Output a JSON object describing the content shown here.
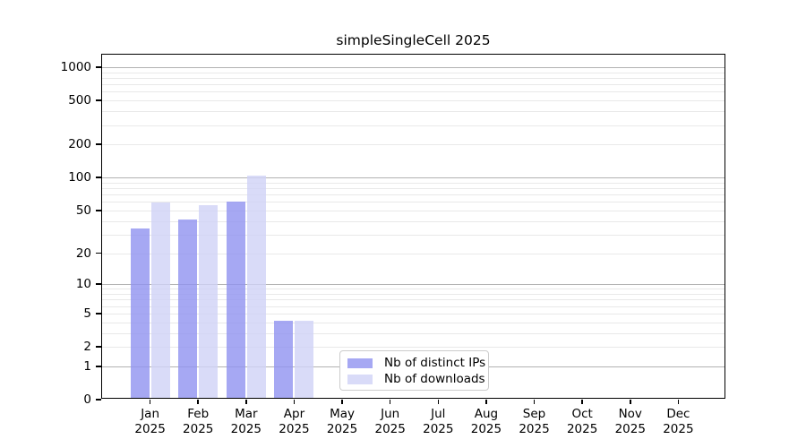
{
  "chart_data": {
    "type": "bar",
    "title": "simpleSingleCell 2025",
    "x_categories": [
      "Jan",
      "Feb",
      "Mar",
      "Apr",
      "May",
      "Jun",
      "Jul",
      "Aug",
      "Sep",
      "Oct",
      "Nov",
      "Dec"
    ],
    "x_year": "2025",
    "series": [
      {
        "name": "Nb of distinct IPs",
        "color": "rgba(144,146,240,0.8)",
        "values": [
          33,
          40,
          58,
          4,
          0,
          0,
          0,
          0,
          0,
          0,
          0,
          0
        ]
      },
      {
        "name": "Nb of downloads",
        "color": "rgba(208,210,246,0.8)",
        "values": [
          57,
          54,
          100,
          4,
          0,
          0,
          0,
          0,
          0,
          0,
          0,
          0
        ]
      }
    ],
    "y_axis": {
      "scale": "log1p",
      "ticks": [
        0,
        1,
        2,
        5,
        10,
        20,
        50,
        100,
        200,
        500,
        1000
      ],
      "min": 0,
      "max": 1000
    },
    "grid": {
      "major_values": [
        1,
        10,
        100,
        1000
      ],
      "minor_multiples": [
        2,
        3,
        4,
        5,
        6,
        7,
        8,
        9
      ],
      "minor_decades": [
        1,
        10,
        100
      ]
    },
    "legend": {
      "position": "lower-center"
    }
  }
}
